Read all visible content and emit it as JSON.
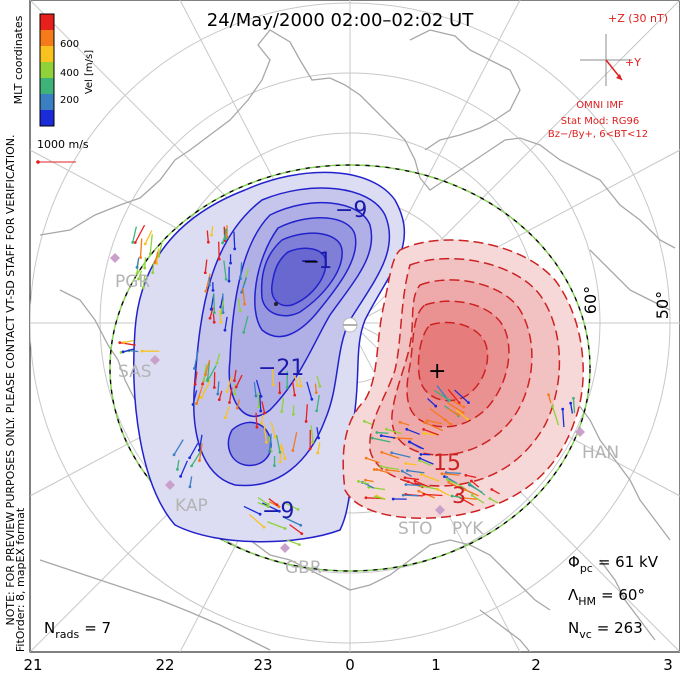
{
  "title": "24/May/2000 02:00–02:02 UT",
  "colorbar": {
    "label": "Vel [m/s]",
    "ticks": [
      "600",
      "400",
      "200"
    ],
    "colors": [
      "#e8201c",
      "#f57a1a",
      "#f9c21e",
      "#8fd23a",
      "#3fb27a",
      "#3a7fc2",
      "#1a2cd8"
    ]
  },
  "side_note": "NOTE: FOR PREVIEW PURPOSES ONLY. PLEASE CONTACT VT-SD STAFF FOR VERIFICATION.",
  "side_note2": "FitOrder: 8, mapEX format",
  "coords": "MLT coordinates",
  "scale_label": "1000 m/s",
  "imf": {
    "z": "+Z (30 nT)",
    "y": "+Y",
    "label": "OMNI IMF",
    "stat1": "Stat Mod: RG96",
    "stat2": "Bz−/By+, 6<BT<12"
  },
  "lat_labels": [
    "60°",
    "50°"
  ],
  "contours": {
    "neg_outer": "−9",
    "neg_inner": "−1",
    "neg_mid": "−21",
    "neg_bottom": "−9",
    "pos_mid": "15",
    "pos_low": "3"
  },
  "stations": [
    "PGR",
    "SAS",
    "KAP",
    "GBR",
    "STO",
    "PYK",
    "HAN"
  ],
  "stats": {
    "phi_prefix": "Φ",
    "phi_sub": "pc",
    "phi_val": "= 61 kV",
    "lam_prefix": "Λ",
    "lam_sub": "HM",
    "lam_val": "= 60°",
    "nvc_prefix": "N",
    "nvc_sub": "vc",
    "nvc_val": "= 263",
    "nrads_prefix": "N",
    "nrads_sub": "rads",
    "nrads_val": "= 7"
  },
  "mlt_ticks": [
    "21",
    "22",
    "23",
    "0",
    "1",
    "2",
    "3"
  ],
  "pole_marks": {
    "minus": "−",
    "plus": "+"
  }
}
